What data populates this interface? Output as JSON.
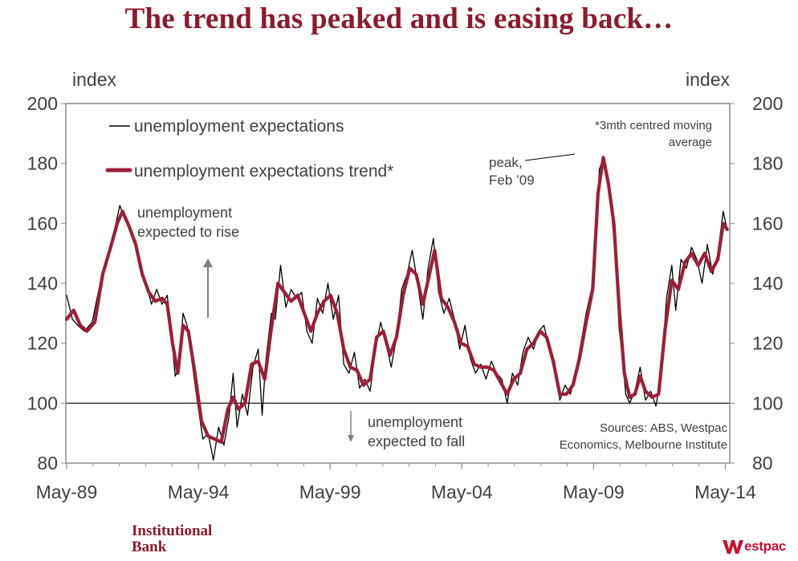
{
  "page": {
    "title": "The trend has peaked and is easing back…",
    "logo_left_line1": "Institutional",
    "logo_left_line2": "Bank",
    "logo_right": "estpac"
  },
  "chart_data": {
    "type": "line",
    "title": "The trend has peaked and is easing back…",
    "ylabel_left": "index",
    "ylabel_right": "index",
    "ylim": [
      80,
      200
    ],
    "yticks": [
      80,
      100,
      120,
      140,
      160,
      180,
      200
    ],
    "xlim": [
      1989.3,
      2014.5
    ],
    "xticks": [
      {
        "label": "May-89",
        "x": 1989.33
      },
      {
        "label": "May-94",
        "x": 1994.33
      },
      {
        "label": "May-99",
        "x": 1999.33
      },
      {
        "label": "May-04",
        "x": 2004.33
      },
      {
        "label": "May-09",
        "x": 2009.33
      },
      {
        "label": "May-14",
        "x": 2014.33
      }
    ],
    "reference_line": 100,
    "series": [
      {
        "name": "unemployment expectations",
        "color": "#000000",
        "anchors": [
          [
            1989.33,
            136
          ],
          [
            1989.55,
            128
          ],
          [
            1989.75,
            126
          ],
          [
            1990.0,
            124
          ],
          [
            1990.3,
            127
          ],
          [
            1990.6,
            140
          ],
          [
            1990.9,
            150
          ],
          [
            1991.15,
            158
          ],
          [
            1991.35,
            166
          ],
          [
            1991.55,
            161
          ],
          [
            1991.75,
            158
          ],
          [
            1991.95,
            154
          ],
          [
            1992.15,
            145
          ],
          [
            1992.35,
            140
          ],
          [
            1992.55,
            133
          ],
          [
            1992.75,
            138
          ],
          [
            1992.95,
            133
          ],
          [
            1993.15,
            136
          ],
          [
            1993.3,
            124
          ],
          [
            1993.45,
            109
          ],
          [
            1993.6,
            112
          ],
          [
            1993.75,
            130
          ],
          [
            1993.9,
            126
          ],
          [
            1994.1,
            113
          ],
          [
            1994.3,
            100
          ],
          [
            1994.5,
            88
          ],
          [
            1994.7,
            90
          ],
          [
            1994.9,
            81
          ],
          [
            1995.1,
            92
          ],
          [
            1995.3,
            86
          ],
          [
            1995.5,
            96
          ],
          [
            1995.65,
            110
          ],
          [
            1995.8,
            92
          ],
          [
            1996.0,
            103
          ],
          [
            1996.2,
            96
          ],
          [
            1996.4,
            112
          ],
          [
            1996.6,
            118
          ],
          [
            1996.75,
            96
          ],
          [
            1996.9,
            115
          ],
          [
            1997.1,
            130
          ],
          [
            1997.25,
            128
          ],
          [
            1997.45,
            146
          ],
          [
            1997.65,
            132
          ],
          [
            1997.85,
            138
          ],
          [
            1998.05,
            135
          ],
          [
            1998.25,
            137
          ],
          [
            1998.45,
            124
          ],
          [
            1998.65,
            120
          ],
          [
            1998.85,
            135
          ],
          [
            1999.05,
            130
          ],
          [
            1999.25,
            140
          ],
          [
            1999.45,
            128
          ],
          [
            1999.65,
            136
          ],
          [
            1999.85,
            113
          ],
          [
            2000.05,
            110
          ],
          [
            2000.25,
            117
          ],
          [
            2000.45,
            105
          ],
          [
            2000.65,
            108
          ],
          [
            2000.85,
            104
          ],
          [
            2001.05,
            118
          ],
          [
            2001.25,
            127
          ],
          [
            2001.45,
            120
          ],
          [
            2001.65,
            112
          ],
          [
            2001.85,
            122
          ],
          [
            2002.05,
            138
          ],
          [
            2002.25,
            143
          ],
          [
            2002.45,
            151
          ],
          [
            2002.65,
            140
          ],
          [
            2002.85,
            128
          ],
          [
            2003.05,
            145
          ],
          [
            2003.25,
            155
          ],
          [
            2003.45,
            137
          ],
          [
            2003.65,
            130
          ],
          [
            2003.85,
            135
          ],
          [
            2004.05,
            128
          ],
          [
            2004.25,
            118
          ],
          [
            2004.45,
            126
          ],
          [
            2004.65,
            115
          ],
          [
            2004.85,
            110
          ],
          [
            2005.05,
            113
          ],
          [
            2005.25,
            108
          ],
          [
            2005.45,
            114
          ],
          [
            2005.65,
            110
          ],
          [
            2005.85,
            108
          ],
          [
            2006.05,
            100
          ],
          [
            2006.25,
            110
          ],
          [
            2006.45,
            106
          ],
          [
            2006.65,
            117
          ],
          [
            2006.85,
            122
          ],
          [
            2007.05,
            118
          ],
          [
            2007.25,
            124
          ],
          [
            2007.45,
            126
          ],
          [
            2007.65,
            118
          ],
          [
            2007.85,
            114
          ],
          [
            2008.05,
            101
          ],
          [
            2008.25,
            106
          ],
          [
            2008.45,
            103
          ],
          [
            2008.65,
            110
          ],
          [
            2008.85,
            120
          ],
          [
            2009.05,
            130
          ],
          [
            2009.2,
            136
          ],
          [
            2009.35,
            142
          ],
          [
            2009.55,
            178
          ],
          [
            2009.7,
            182
          ],
          [
            2009.85,
            175
          ],
          [
            2010.0,
            165
          ],
          [
            2010.15,
            150
          ],
          [
            2010.3,
            125
          ],
          [
            2010.45,
            113
          ],
          [
            2010.55,
            103
          ],
          [
            2010.7,
            100
          ],
          [
            2010.9,
            104
          ],
          [
            2011.1,
            112
          ],
          [
            2011.3,
            101
          ],
          [
            2011.5,
            104
          ],
          [
            2011.7,
            99
          ],
          [
            2011.9,
            110
          ],
          [
            2012.1,
            135
          ],
          [
            2012.3,
            146
          ],
          [
            2012.45,
            131
          ],
          [
            2012.65,
            148
          ],
          [
            2012.85,
            145
          ],
          [
            2013.05,
            152
          ],
          [
            2013.25,
            148
          ],
          [
            2013.45,
            140
          ],
          [
            2013.65,
            153
          ],
          [
            2013.85,
            143
          ],
          [
            2014.05,
            150
          ],
          [
            2014.25,
            164
          ],
          [
            2014.4,
            158
          ]
        ]
      },
      {
        "name": "unemployment expectations trend*",
        "color": "#9c1f3a",
        "anchors": [
          [
            1989.33,
            128
          ],
          [
            1989.6,
            131
          ],
          [
            1989.85,
            126
          ],
          [
            1990.1,
            124
          ],
          [
            1990.4,
            127
          ],
          [
            1990.7,
            143
          ],
          [
            1991.0,
            152
          ],
          [
            1991.25,
            160
          ],
          [
            1991.45,
            164
          ],
          [
            1991.7,
            159
          ],
          [
            1991.95,
            153
          ],
          [
            1992.2,
            143
          ],
          [
            1992.45,
            137
          ],
          [
            1992.7,
            134
          ],
          [
            1992.95,
            135
          ],
          [
            1993.15,
            133
          ],
          [
            1993.35,
            120
          ],
          [
            1993.55,
            110
          ],
          [
            1993.75,
            126
          ],
          [
            1993.95,
            124
          ],
          [
            1994.2,
            110
          ],
          [
            1994.45,
            94
          ],
          [
            1994.7,
            89
          ],
          [
            1994.95,
            88
          ],
          [
            1995.2,
            87
          ],
          [
            1995.45,
            98
          ],
          [
            1995.65,
            102
          ],
          [
            1995.85,
            98
          ],
          [
            1996.1,
            100
          ],
          [
            1996.35,
            113
          ],
          [
            1996.6,
            114
          ],
          [
            1996.85,
            108
          ],
          [
            1997.1,
            125
          ],
          [
            1997.35,
            140
          ],
          [
            1997.6,
            137
          ],
          [
            1997.85,
            134
          ],
          [
            1998.1,
            136
          ],
          [
            1998.35,
            130
          ],
          [
            1998.6,
            124
          ],
          [
            1998.85,
            130
          ],
          [
            1999.1,
            134
          ],
          [
            1999.35,
            136
          ],
          [
            1999.6,
            130
          ],
          [
            1999.85,
            118
          ],
          [
            2000.1,
            112
          ],
          [
            2000.35,
            111
          ],
          [
            2000.6,
            106
          ],
          [
            2000.85,
            108
          ],
          [
            2001.1,
            122
          ],
          [
            2001.35,
            124
          ],
          [
            2001.6,
            116
          ],
          [
            2001.85,
            122
          ],
          [
            2002.1,
            136
          ],
          [
            2002.35,
            145
          ],
          [
            2002.6,
            143
          ],
          [
            2002.85,
            133
          ],
          [
            2003.1,
            143
          ],
          [
            2003.3,
            151
          ],
          [
            2003.55,
            135
          ],
          [
            2003.8,
            132
          ],
          [
            2004.05,
            127
          ],
          [
            2004.3,
            120
          ],
          [
            2004.55,
            119
          ],
          [
            2004.8,
            113
          ],
          [
            2005.05,
            112
          ],
          [
            2005.3,
            112
          ],
          [
            2005.55,
            111
          ],
          [
            2005.8,
            107
          ],
          [
            2006.05,
            103
          ],
          [
            2006.3,
            108
          ],
          [
            2006.55,
            110
          ],
          [
            2006.8,
            118
          ],
          [
            2007.05,
            120
          ],
          [
            2007.3,
            124
          ],
          [
            2007.55,
            122
          ],
          [
            2007.8,
            114
          ],
          [
            2008.05,
            103
          ],
          [
            2008.3,
            103
          ],
          [
            2008.55,
            106
          ],
          [
            2008.8,
            115
          ],
          [
            2009.05,
            127
          ],
          [
            2009.3,
            138
          ],
          [
            2009.5,
            170
          ],
          [
            2009.7,
            182
          ],
          [
            2009.9,
            173
          ],
          [
            2010.1,
            160
          ],
          [
            2010.3,
            132
          ],
          [
            2010.5,
            110
          ],
          [
            2010.7,
            102
          ],
          [
            2010.9,
            103
          ],
          [
            2011.1,
            109
          ],
          [
            2011.3,
            104
          ],
          [
            2011.55,
            102
          ],
          [
            2011.8,
            103
          ],
          [
            2012.05,
            125
          ],
          [
            2012.3,
            141
          ],
          [
            2012.55,
            138
          ],
          [
            2012.8,
            147
          ],
          [
            2013.05,
            150
          ],
          [
            2013.3,
            146
          ],
          [
            2013.55,
            150
          ],
          [
            2013.8,
            144
          ],
          [
            2014.05,
            148
          ],
          [
            2014.25,
            160
          ],
          [
            2014.4,
            158
          ]
        ]
      }
    ],
    "legend": {
      "placement": "top-left",
      "entries": [
        "unemployment expectations",
        "unemployment expectations trend*"
      ]
    },
    "annotations": {
      "footnote": [
        "*3mth centred moving",
        "average"
      ],
      "peak": [
        "peak,",
        "Feb ’09"
      ],
      "rise": [
        "unemployment",
        "expected to rise"
      ],
      "fall": [
        "unemployment",
        "expected to fall"
      ],
      "sources": [
        "Sources: ABS, Westpac",
        "Economics, Melbourne Institute"
      ]
    }
  }
}
